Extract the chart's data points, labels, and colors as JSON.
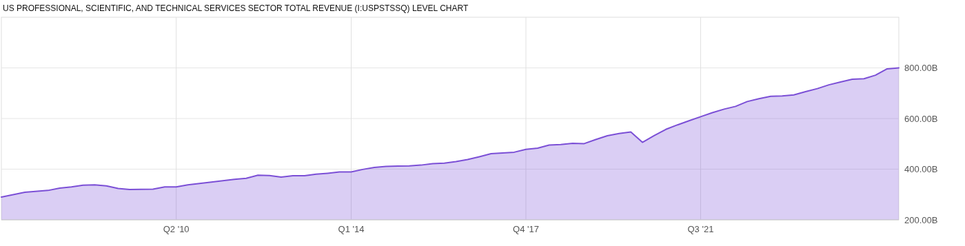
{
  "chart_data": {
    "type": "area",
    "title": "US PROFESSIONAL, SCIENTIFIC, AND TECHNICAL SERVICES SECTOR TOTAL REVENUE (I:USPSTSSQ) LEVEL CHART",
    "x": [
      "2006-07",
      "2007-01",
      "2007-07",
      "2007-10",
      "2008-01",
      "2008-04",
      "2008-07",
      "2008-10",
      "2009-01",
      "2009-04",
      "2009-10",
      "2010-01",
      "2010-04",
      "2010-07",
      "2011-01",
      "2011-07",
      "2011-10",
      "2012-01",
      "2012-04",
      "2012-07",
      "2012-10",
      "2013-01",
      "2013-04",
      "2013-07",
      "2013-10",
      "2014-01",
      "2014-04",
      "2014-07",
      "2014-10",
      "2015-01",
      "2015-04",
      "2015-07",
      "2015-10",
      "2016-01",
      "2016-04",
      "2016-07",
      "2016-10",
      "2017-01",
      "2017-07",
      "2017-10",
      "2018-01",
      "2018-04",
      "2018-07",
      "2018-10",
      "2019-01",
      "2019-04",
      "2019-07",
      "2019-10",
      "2020-01",
      "2020-04",
      "2020-07",
      "2020-10",
      "2021-01",
      "2021-04",
      "2021-07",
      "2021-10",
      "2022-01",
      "2022-04",
      "2022-07",
      "2022-10",
      "2023-01",
      "2023-04",
      "2023-07",
      "2023-10",
      "2024-01",
      "2024-04",
      "2024-07",
      "2024-10",
      "2025-01",
      "2025-04",
      "2025-07",
      "2025-10"
    ],
    "series": [
      {
        "color": "#7b4fd6",
        "values": [
          290,
          309,
          316,
          325,
          330,
          337,
          338,
          334,
          324,
          320,
          321,
          330,
          330,
          338,
          349,
          360,
          364,
          376,
          375,
          369,
          374,
          374,
          380,
          384,
          389,
          389,
          399,
          407,
          411,
          412,
          413,
          416,
          422,
          424,
          430,
          438,
          449,
          461,
          467,
          478,
          483,
          495,
          497,
          502,
          501,
          517,
          532,
          541,
          547,
          506,
          532,
          557,
          575,
          591,
          607,
          623,
          637,
          648,
          667,
          678,
          688,
          689,
          693,
          706,
          718,
          733,
          744,
          755,
          757,
          771,
          796,
          800
        ]
      }
    ],
    "xlim": [
      "2006-07",
      "2025-10"
    ],
    "xticks": [
      {
        "value": "2010-04",
        "label": "Q2 '10"
      },
      {
        "value": "2014-01",
        "label": "Q1 '14"
      },
      {
        "value": "2017-10",
        "label": "Q4 '17"
      },
      {
        "value": "2021-07",
        "label": "Q3 '21"
      }
    ],
    "ylim": [
      200,
      1000
    ],
    "yticks": [
      {
        "value": 200,
        "label": "200.00B"
      },
      {
        "value": 400,
        "label": "400.00B"
      },
      {
        "value": 600,
        "label": "600.00B"
      },
      {
        "value": 800,
        "label": "800.00B"
      }
    ],
    "grid": true
  }
}
